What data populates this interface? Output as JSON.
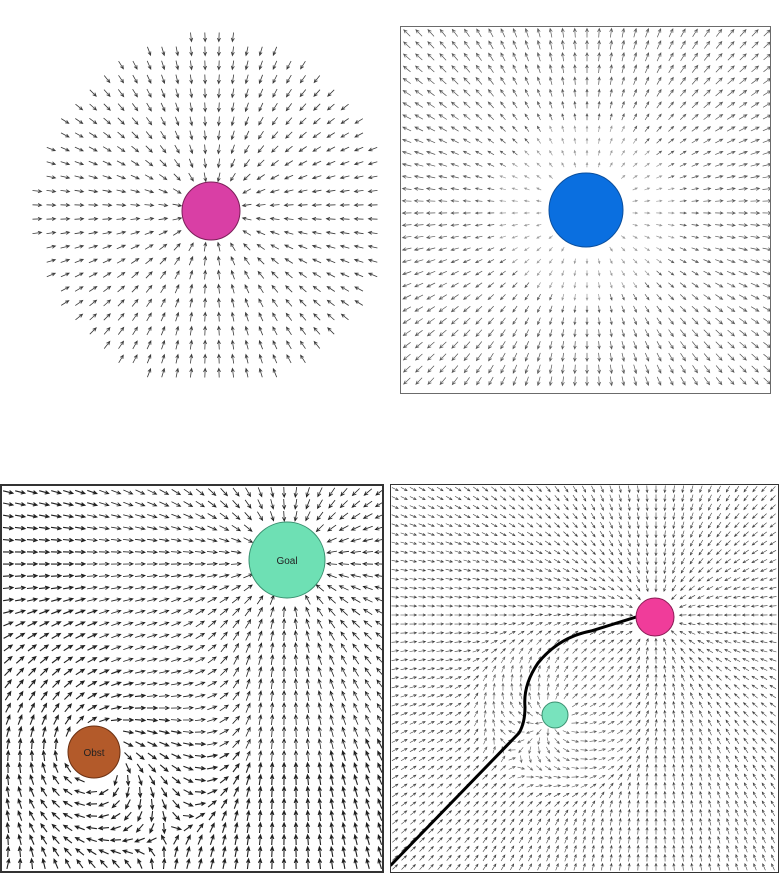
{
  "panels": [
    {
      "id": "attractive-field",
      "field": "radial-inward",
      "boundary": "circle",
      "frame": false,
      "sources": [
        {
          "role": "goal",
          "color": "#d93fa5",
          "label": ""
        }
      ]
    },
    {
      "id": "repulsive-field",
      "field": "radial-outward",
      "boundary": "square",
      "frame": true,
      "sources": [
        {
          "role": "obstacle",
          "color": "#0a6fe0",
          "label": ""
        }
      ]
    },
    {
      "id": "combined-field-labeled",
      "field": "goal-attract-obstacle-swirl",
      "boundary": "square",
      "frame": true,
      "sources": [
        {
          "role": "goal",
          "color": "#6ee0b4",
          "label": "Goal"
        },
        {
          "role": "obstacle",
          "color": "#b35a2a",
          "label": "Obst"
        }
      ]
    },
    {
      "id": "combined-field-path",
      "field": "goal-attract-obstacle-repel",
      "boundary": "square",
      "frame": true,
      "path": true,
      "sources": [
        {
          "role": "goal",
          "color": "#f03c9a",
          "label": ""
        },
        {
          "role": "obstacle",
          "color": "#78e3bd",
          "label": ""
        }
      ]
    }
  ]
}
